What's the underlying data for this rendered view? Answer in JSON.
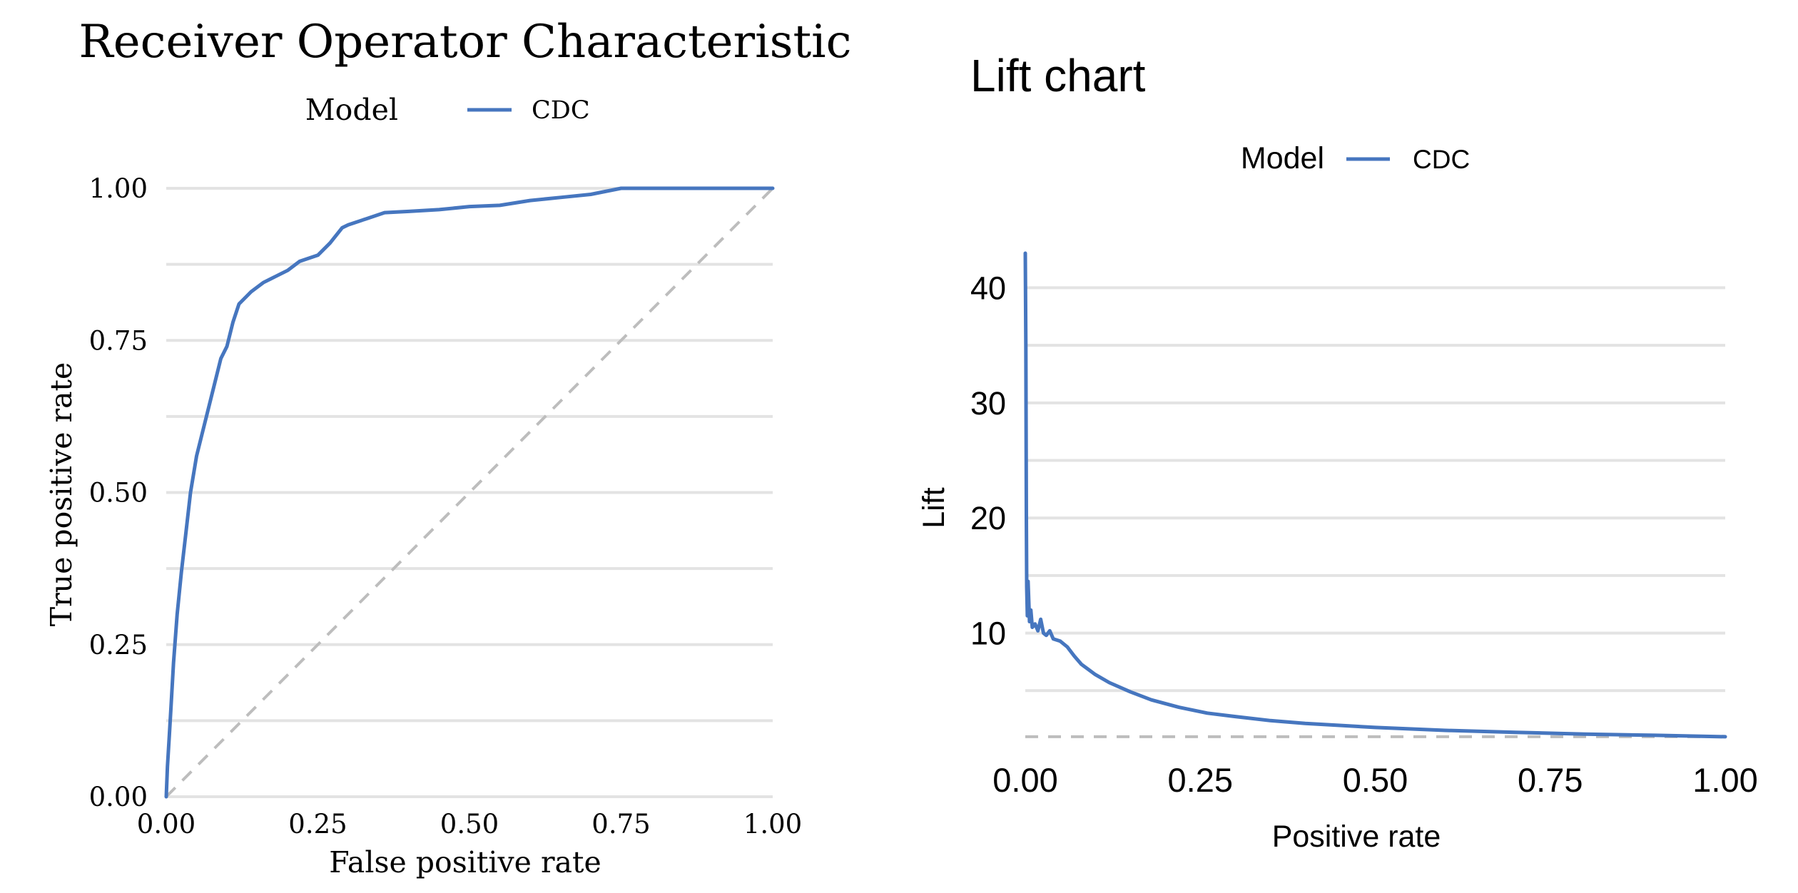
{
  "colors": {
    "series": "#4676bf",
    "grid": "#e3e3e3",
    "reference": "#bdbdbd",
    "text": "#000000"
  },
  "chart_data": [
    {
      "type": "line",
      "title": "Receiver Operator Characteristic",
      "xlabel": "False positive rate",
      "ylabel": "True positive rate",
      "legend": {
        "title": "Model",
        "position": "top"
      },
      "xlim": [
        0,
        1
      ],
      "ylim": [
        0,
        1
      ],
      "x_ticks": [
        "0.00",
        "0.25",
        "0.50",
        "0.75",
        "1.00"
      ],
      "y_ticks": [
        "0.00",
        "0.25",
        "0.50",
        "0.75",
        "1.00"
      ],
      "grid": "horizontal",
      "reference_line": {
        "style": "dashed",
        "from": [
          0,
          0
        ],
        "to": [
          1,
          1
        ]
      },
      "series": [
        {
          "name": "CDC",
          "x": [
            0.0,
            0.002,
            0.005,
            0.008,
            0.012,
            0.018,
            0.025,
            0.032,
            0.04,
            0.05,
            0.06,
            0.07,
            0.08,
            0.09,
            0.1,
            0.11,
            0.12,
            0.14,
            0.16,
            0.18,
            0.2,
            0.22,
            0.25,
            0.27,
            0.29,
            0.3,
            0.33,
            0.36,
            0.4,
            0.45,
            0.5,
            0.55,
            0.6,
            0.65,
            0.7,
            0.75,
            0.8,
            0.9,
            1.0
          ],
          "y": [
            0.0,
            0.05,
            0.1,
            0.15,
            0.22,
            0.3,
            0.37,
            0.43,
            0.5,
            0.56,
            0.6,
            0.64,
            0.68,
            0.72,
            0.74,
            0.78,
            0.81,
            0.83,
            0.845,
            0.855,
            0.865,
            0.88,
            0.89,
            0.91,
            0.935,
            0.94,
            0.95,
            0.96,
            0.962,
            0.965,
            0.97,
            0.972,
            0.98,
            0.985,
            0.99,
            1.0,
            1.0,
            1.0,
            1.0
          ]
        }
      ]
    },
    {
      "type": "line",
      "title": "Lift chart",
      "xlabel": "Positive rate",
      "ylabel": "Lift",
      "legend": {
        "title": "Model",
        "position": "top"
      },
      "xlim": [
        0,
        1
      ],
      "ylim": [
        0,
        43
      ],
      "x_ticks": [
        "0.00",
        "0.25",
        "0.50",
        "0.75",
        "1.00"
      ],
      "y_ticks": [
        "10",
        "20",
        "30",
        "40"
      ],
      "grid": "horizontal",
      "reference_line": {
        "style": "dashed",
        "y": 1
      },
      "series": [
        {
          "name": "CDC",
          "x": [
            0.0,
            0.0008,
            0.0015,
            0.002,
            0.003,
            0.004,
            0.006,
            0.008,
            0.01,
            0.014,
            0.018,
            0.022,
            0.026,
            0.03,
            0.035,
            0.04,
            0.05,
            0.06,
            0.07,
            0.08,
            0.1,
            0.12,
            0.15,
            0.18,
            0.22,
            0.26,
            0.3,
            0.35,
            0.4,
            0.5,
            0.6,
            0.7,
            0.8,
            0.9,
            1.0
          ],
          "y": [
            43,
            35,
            20,
            14,
            11.5,
            14.5,
            11.0,
            12.0,
            10.5,
            10.8,
            10.2,
            11.2,
            10.0,
            9.8,
            10.2,
            9.5,
            9.3,
            8.8,
            8.0,
            7.3,
            6.4,
            5.7,
            4.9,
            4.2,
            3.55,
            3.05,
            2.75,
            2.4,
            2.15,
            1.8,
            1.55,
            1.38,
            1.22,
            1.12,
            1.0
          ]
        }
      ]
    }
  ]
}
